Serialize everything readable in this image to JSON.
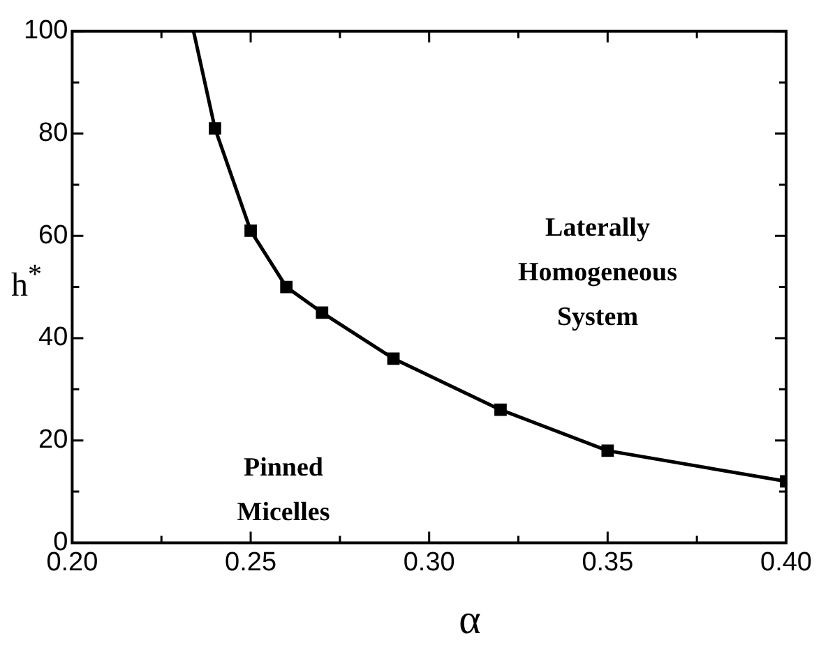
{
  "chart_data": {
    "type": "line",
    "xlabel": "α",
    "ylabel": "h$^{*}$",
    "xlim": [
      0.2,
      0.4
    ],
    "ylim": [
      0,
      100
    ],
    "xticks": [
      {
        "value": 0.2,
        "label": "0.20"
      },
      {
        "value": 0.225,
        "label": null
      },
      {
        "value": 0.25,
        "label": "0.25"
      },
      {
        "value": 0.275,
        "label": null
      },
      {
        "value": 0.3,
        "label": "0.30"
      },
      {
        "value": 0.325,
        "label": null
      },
      {
        "value": 0.35,
        "label": "0.35"
      },
      {
        "value": 0.375,
        "label": null
      },
      {
        "value": 0.4,
        "label": "0.40"
      }
    ],
    "yticks": [
      0,
      {
        "value": 10,
        "label": null
      },
      20,
      {
        "value": 30,
        "label": null
      },
      40,
      {
        "value": 50,
        "label": null
      },
      60,
      {
        "value": 70,
        "label": null
      },
      80,
      {
        "value": 90,
        "label": null
      },
      100
    ],
    "series": [
      {
        "color": "#000000",
        "marker": "square",
        "x": [
          0.234,
          0.24,
          0.25,
          0.26,
          0.27,
          0.29,
          0.32,
          0.35,
          0.4
        ],
        "values": [
          100,
          81,
          61,
          50,
          45,
          36,
          26,
          18,
          12
        ]
      }
    ],
    "annotations": [
      "Laterally\nHomogeneous\nSystem",
      "Pinned\nMicelles"
    ],
    "grid": false,
    "legend": false
  }
}
